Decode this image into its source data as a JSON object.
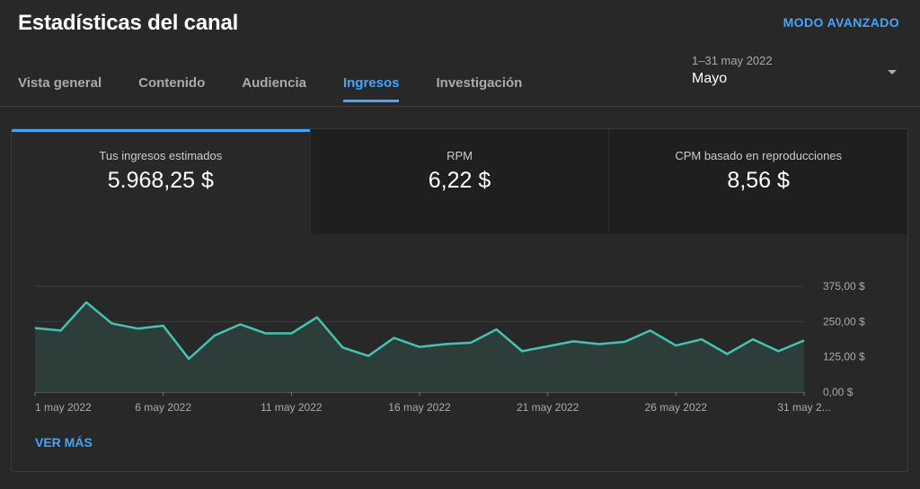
{
  "header": {
    "title": "Estadísticas del canal",
    "advanced_mode": "MODO AVANZADO"
  },
  "tabs": [
    {
      "label": "Vista general"
    },
    {
      "label": "Contenido"
    },
    {
      "label": "Audiencia"
    },
    {
      "label": "Ingresos",
      "active": true
    },
    {
      "label": "Investigación"
    }
  ],
  "date_picker": {
    "range": "1–31 may 2022",
    "value": "Mayo"
  },
  "metrics": [
    {
      "label": "Tus ingresos estimados",
      "value": "5.968,25 $"
    },
    {
      "label": "RPM",
      "value": "6,22 $"
    },
    {
      "label": "CPM basado en reproducciones",
      "value": "8,56 $"
    }
  ],
  "see_more": "VER MÁS",
  "colors": {
    "accent": "#3ea6ff",
    "line": "#41c5b1",
    "area": "#2d3d3a"
  },
  "chart_data": {
    "type": "area",
    "x": [
      "1 may 2022",
      "2 may 2022",
      "3 may 2022",
      "4 may 2022",
      "5 may 2022",
      "6 may 2022",
      "7 may 2022",
      "8 may 2022",
      "9 may 2022",
      "10 may 2022",
      "11 may 2022",
      "12 may 2022",
      "13 may 2022",
      "14 may 2022",
      "15 may 2022",
      "16 may 2022",
      "17 may 2022",
      "18 may 2022",
      "19 may 2022",
      "20 may 2022",
      "21 may 2022",
      "22 may 2022",
      "23 may 2022",
      "24 may 2022",
      "25 may 2022",
      "26 may 2022",
      "27 may 2022",
      "28 may 2022",
      "29 may 2022",
      "30 may 2022",
      "31 may 2022"
    ],
    "series": [
      {
        "values": [
          227,
          218,
          318,
          243,
          225,
          235,
          118,
          200,
          240,
          208,
          208,
          265,
          158,
          128,
          192,
          160,
          170,
          175,
          222,
          145,
          162,
          180,
          170,
          178,
          218,
          165,
          187,
          135,
          187,
          145,
          183
        ]
      }
    ],
    "ylim": [
      0,
      375
    ],
    "yticks": [
      {
        "value": 375,
        "label": "375,00 $"
      },
      {
        "value": 250,
        "label": "250,00 $"
      },
      {
        "value": 125,
        "label": "125,00 $"
      },
      {
        "value": 0,
        "label": "0,00 $"
      }
    ],
    "xtick_labels": [
      {
        "index": 0,
        "label": "1 may 2022"
      },
      {
        "index": 5,
        "label": "6 may 2022"
      },
      {
        "index": 10,
        "label": "11 may 2022"
      },
      {
        "index": 15,
        "label": "16 may 2022"
      },
      {
        "index": 20,
        "label": "21 may 2022"
      },
      {
        "index": 25,
        "label": "26 may 2022"
      },
      {
        "index": 30,
        "label": "31 may 2..."
      }
    ],
    "grid": true
  }
}
